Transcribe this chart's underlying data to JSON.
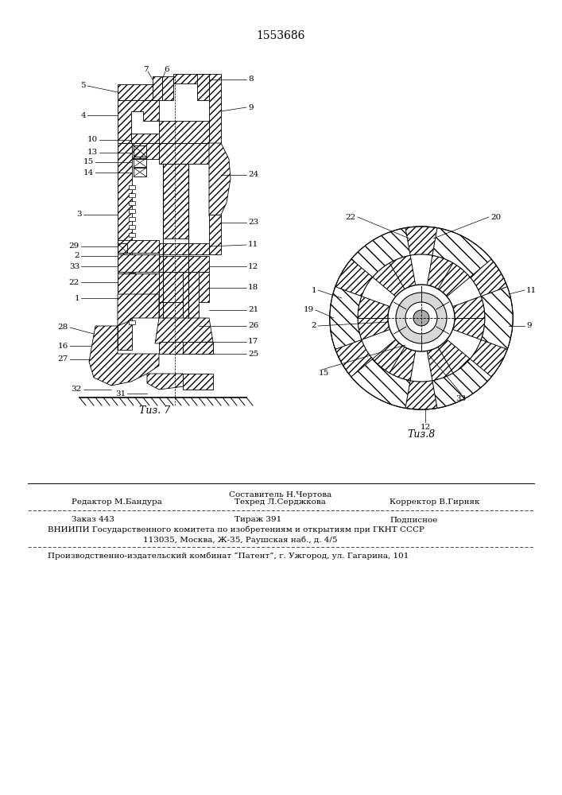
{
  "patent_number": "1553686",
  "fig7_label": "Τиз. 7",
  "fig8_label": "Τиз.8",
  "background_color": "#ffffff",
  "line_color": "#000000",
  "footer_sestavitel": "Составитель Н.Чертова",
  "footer_tehred": "Техред Л.Серджкова",
  "footer_redaktor": "Редактор М.Бандура",
  "footer_korrektor": "Корректор В.Гирняк",
  "footer_zakaz": "Заказ 443",
  "footer_tirazh": "Тираж 391",
  "footer_podpisnoe": "Подписное",
  "footer_vniipи": "ВНИИПИ Государственного комитета по изобретениям и открытиям при ГКНТ СССР",
  "footer_addr": "113035, Москва, Ж-35, Раушская наб., д. 4/5",
  "footer_patent": "Производственно-издательский комбинат “Патент”, г. Ужгород, ул. Гагарина, 101"
}
